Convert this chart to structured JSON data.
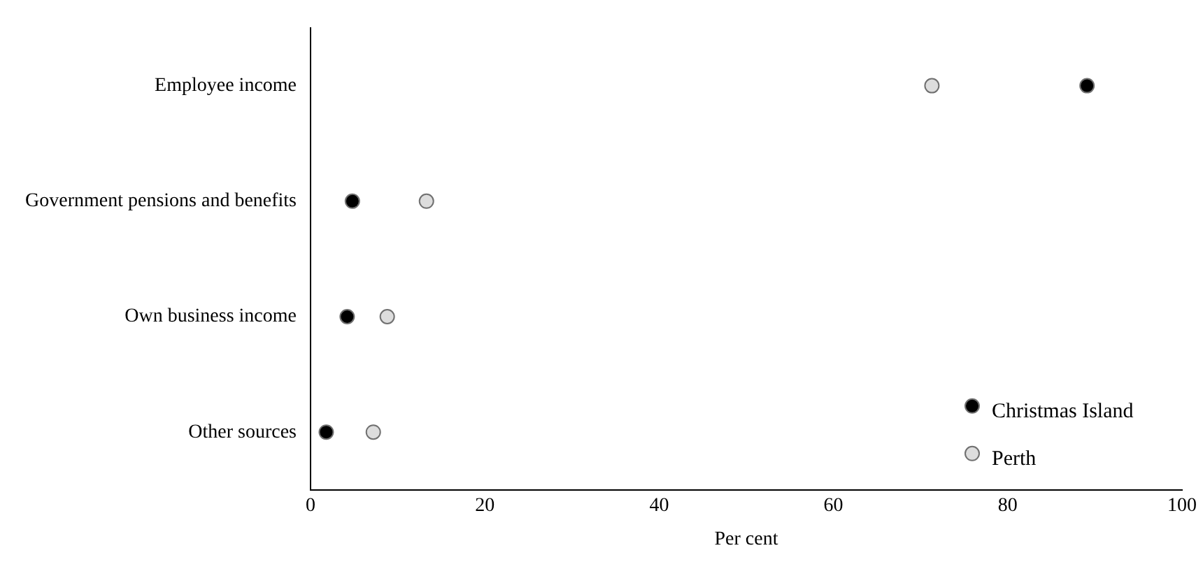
{
  "chart_data": {
    "type": "scatter",
    "orientation": "horizontal",
    "xlabel": "Per cent",
    "categories": [
      "Employee income",
      "Government pensions and benefits",
      "Own business income",
      "Other sources"
    ],
    "series": [
      {
        "name": "Christmas Island",
        "color": "#000000",
        "values": [
          89.1,
          4.8,
          4.2,
          1.8
        ]
      },
      {
        "name": "Perth",
        "color": "#dddddd",
        "values": [
          71.3,
          13.3,
          8.8,
          7.2
        ]
      }
    ],
    "xlim": [
      0,
      100
    ],
    "xticks": [
      0,
      20,
      40,
      60,
      80,
      100
    ],
    "grid": false,
    "legend": "bottom right",
    "marker": "circle"
  }
}
